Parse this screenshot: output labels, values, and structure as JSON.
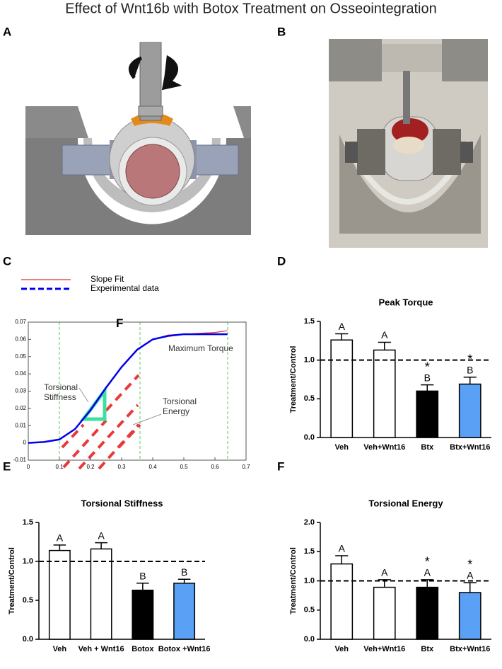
{
  "title": "Effect of Wnt16b with Botox Treatment on Osseointegration",
  "panel_labels": [
    "A",
    "B",
    "C",
    "D",
    "E",
    "F"
  ],
  "chart_data": [
    {
      "type": "line",
      "xlim": [
        0,
        0.7
      ],
      "ylim": [
        -0.01,
        0.07
      ],
      "xticks": [
        0,
        0.1,
        0.2,
        0.3,
        0.4,
        0.5,
        0.6,
        0.7
      ],
      "yticks": [
        -0.01,
        0,
        0.01,
        0.02,
        0.03,
        0.04,
        0.05,
        0.06,
        0.07
      ],
      "series": [
        {
          "name": "Slope Fit",
          "color": "#e03030",
          "x": [
            0.36,
            0.4,
            0.45,
            0.5,
            0.55,
            0.6,
            0.64
          ],
          "values": [
            0.055,
            0.06,
            0.0625,
            0.063,
            0.0635,
            0.064,
            0.065
          ]
        },
        {
          "name": "Experimental data",
          "color": "#0000ee",
          "x": [
            0,
            0.05,
            0.1,
            0.15,
            0.2,
            0.25,
            0.3,
            0.35,
            0.4,
            0.45,
            0.5,
            0.55,
            0.6,
            0.64
          ],
          "values": [
            0,
            0.0005,
            0.002,
            0.008,
            0.019,
            0.032,
            0.044,
            0.054,
            0.06,
            0.062,
            0.063,
            0.063,
            0.063,
            0.063
          ]
        }
      ],
      "annotations": [
        "Torsional Stiffness",
        "Torsional Energy",
        "Maximum Torque",
        "F"
      ]
    },
    {
      "type": "bar",
      "title": "Peak Torque",
      "ylabel": "Treatment/Control",
      "categories": [
        "Veh",
        "Veh+Wnt16",
        "Btx",
        "Btx+Wnt16"
      ],
      "values": [
        1.26,
        1.13,
        0.6,
        0.69
      ],
      "errors": [
        0.08,
        0.1,
        0.08,
        0.09
      ],
      "colors": [
        "#ffffff",
        "#ffffff",
        "#000000",
        "#5aa0f5"
      ],
      "letters": [
        "A",
        "A",
        "B",
        "B"
      ],
      "stars": [
        null,
        null,
        "*",
        "*"
      ],
      "reference_line": 1.0,
      "ylim": [
        0,
        1.5
      ],
      "yticks": [
        {
          "value": 0,
          "label": "0.0"
        },
        0.5,
        {
          "value": 1,
          "label": "1.0"
        },
        1.5
      ]
    },
    {
      "type": "bar",
      "title": "Torsional Stiffness",
      "ylabel": "Treatment/Control",
      "categories": [
        "Veh",
        "Veh + Wnt16",
        "Botox",
        "Botox +Wnt16"
      ],
      "values": [
        1.14,
        1.16,
        0.63,
        0.72
      ],
      "errors": [
        0.07,
        0.08,
        0.09,
        0.05
      ],
      "colors": [
        "#ffffff",
        "#ffffff",
        "#000000",
        "#5aa0f5"
      ],
      "letters": [
        "A",
        "A",
        "B",
        "B"
      ],
      "reference_line": 1.0,
      "ylim": [
        0,
        1.5
      ],
      "yticks": [
        {
          "value": 0,
          "label": "0.0"
        },
        0.5,
        {
          "value": 1,
          "label": "1.0"
        },
        1.5
      ]
    },
    {
      "type": "bar",
      "title": "Torsional Energy",
      "ylabel": "Treatment/Control",
      "categories": [
        "Veh",
        "Veh+Wnt16",
        "Btx",
        "Btx+Wnt16"
      ],
      "values": [
        1.29,
        0.89,
        0.89,
        0.8
      ],
      "errors": [
        0.14,
        0.13,
        0.13,
        0.17
      ],
      "colors": [
        "#ffffff",
        "#ffffff",
        "#000000",
        "#5aa0f5"
      ],
      "letters": [
        "A",
        "A",
        "A",
        "A"
      ],
      "stars": [
        null,
        null,
        "*",
        "*"
      ],
      "reference_line": 1.0,
      "ylim": [
        0,
        2
      ],
      "yticks": [
        {
          "value": 0,
          "label": "0.0"
        },
        0.5,
        {
          "value": 1,
          "label": "1.0"
        },
        1.5,
        {
          "value": 2,
          "label": "2.0"
        }
      ]
    }
  ]
}
